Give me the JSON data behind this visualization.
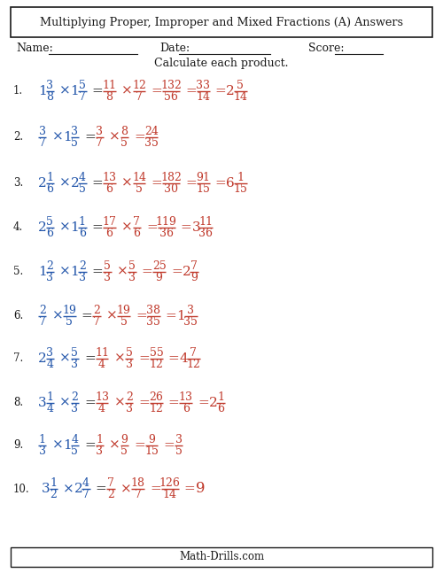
{
  "title": "Multiplying Proper, Improper and Mixed Fractions (A) Answers",
  "name_label": "Name:",
  "date_label": "Date:",
  "score_label": "Score:",
  "instruction": "Calculate each product.",
  "bg_color": "#ffffff",
  "black": "#1a1a1a",
  "red": "#c0392b",
  "blue": "#2255aa",
  "footer": "Math-Drills.com",
  "problems": [
    {
      "num": "1.",
      "parts": [
        {
          "type": "mixed",
          "whole": "1",
          "num": "3",
          "den": "8",
          "color": "blue"
        },
        {
          "type": "times",
          "color": "blue"
        },
        {
          "type": "mixed",
          "whole": "1",
          "num": "5",
          "den": "7",
          "color": "blue"
        },
        {
          "type": "equals",
          "color": "black"
        },
        {
          "type": "frac",
          "num": "11",
          "den": "8",
          "color": "red"
        },
        {
          "type": "times",
          "color": "red"
        },
        {
          "type": "frac",
          "num": "12",
          "den": "7",
          "color": "red"
        },
        {
          "type": "equals",
          "color": "red"
        },
        {
          "type": "frac",
          "num": "132",
          "den": "56",
          "color": "red"
        },
        {
          "type": "equals",
          "color": "red"
        },
        {
          "type": "frac",
          "num": "33",
          "den": "14",
          "color": "red"
        },
        {
          "type": "equals",
          "color": "red"
        },
        {
          "type": "mixed",
          "whole": "2",
          "num": "5",
          "den": "14",
          "color": "red"
        }
      ]
    },
    {
      "num": "2.",
      "parts": [
        {
          "type": "frac",
          "num": "3",
          "den": "7",
          "color": "blue"
        },
        {
          "type": "times",
          "color": "blue"
        },
        {
          "type": "mixed",
          "whole": "1",
          "num": "3",
          "den": "5",
          "color": "blue"
        },
        {
          "type": "equals",
          "color": "black"
        },
        {
          "type": "frac",
          "num": "3",
          "den": "7",
          "color": "red"
        },
        {
          "type": "times",
          "color": "red"
        },
        {
          "type": "frac",
          "num": "8",
          "den": "5",
          "color": "red"
        },
        {
          "type": "equals",
          "color": "red"
        },
        {
          "type": "frac",
          "num": "24",
          "den": "35",
          "color": "red"
        }
      ]
    },
    {
      "num": "3.",
      "parts": [
        {
          "type": "mixed",
          "whole": "2",
          "num": "1",
          "den": "6",
          "color": "blue"
        },
        {
          "type": "times",
          "color": "blue"
        },
        {
          "type": "mixed",
          "whole": "2",
          "num": "4",
          "den": "5",
          "color": "blue"
        },
        {
          "type": "equals",
          "color": "black"
        },
        {
          "type": "frac",
          "num": "13",
          "den": "6",
          "color": "red"
        },
        {
          "type": "times",
          "color": "red"
        },
        {
          "type": "frac",
          "num": "14",
          "den": "5",
          "color": "red"
        },
        {
          "type": "equals",
          "color": "red"
        },
        {
          "type": "frac",
          "num": "182",
          "den": "30",
          "color": "red"
        },
        {
          "type": "equals",
          "color": "red"
        },
        {
          "type": "frac",
          "num": "91",
          "den": "15",
          "color": "red"
        },
        {
          "type": "equals",
          "color": "red"
        },
        {
          "type": "mixed",
          "whole": "6",
          "num": "1",
          "den": "15",
          "color": "red"
        }
      ]
    },
    {
      "num": "4.",
      "parts": [
        {
          "type": "mixed",
          "whole": "2",
          "num": "5",
          "den": "6",
          "color": "blue"
        },
        {
          "type": "times",
          "color": "blue"
        },
        {
          "type": "mixed",
          "whole": "1",
          "num": "1",
          "den": "6",
          "color": "blue"
        },
        {
          "type": "equals",
          "color": "black"
        },
        {
          "type": "frac",
          "num": "17",
          "den": "6",
          "color": "red"
        },
        {
          "type": "times",
          "color": "red"
        },
        {
          "type": "frac",
          "num": "7",
          "den": "6",
          "color": "red"
        },
        {
          "type": "equals",
          "color": "red"
        },
        {
          "type": "frac",
          "num": "119",
          "den": "36",
          "color": "red"
        },
        {
          "type": "equals",
          "color": "red"
        },
        {
          "type": "mixed",
          "whole": "3",
          "num": "11",
          "den": "36",
          "color": "red"
        }
      ]
    },
    {
      "num": "5.",
      "parts": [
        {
          "type": "mixed",
          "whole": "1",
          "num": "2",
          "den": "3",
          "color": "blue"
        },
        {
          "type": "times",
          "color": "blue"
        },
        {
          "type": "mixed",
          "whole": "1",
          "num": "2",
          "den": "3",
          "color": "blue"
        },
        {
          "type": "equals",
          "color": "black"
        },
        {
          "type": "frac",
          "num": "5",
          "den": "3",
          "color": "red"
        },
        {
          "type": "times",
          "color": "red"
        },
        {
          "type": "frac",
          "num": "5",
          "den": "3",
          "color": "red"
        },
        {
          "type": "equals",
          "color": "red"
        },
        {
          "type": "frac",
          "num": "25",
          "den": "9",
          "color": "red"
        },
        {
          "type": "equals",
          "color": "red"
        },
        {
          "type": "mixed",
          "whole": "2",
          "num": "7",
          "den": "9",
          "color": "red"
        }
      ]
    },
    {
      "num": "6.",
      "parts": [
        {
          "type": "frac",
          "num": "2",
          "den": "7",
          "color": "blue"
        },
        {
          "type": "times",
          "color": "blue"
        },
        {
          "type": "frac",
          "num": "19",
          "den": "5",
          "color": "blue"
        },
        {
          "type": "equals",
          "color": "black"
        },
        {
          "type": "frac",
          "num": "2",
          "den": "7",
          "color": "red"
        },
        {
          "type": "times",
          "color": "red"
        },
        {
          "type": "frac",
          "num": "19",
          "den": "5",
          "color": "red"
        },
        {
          "type": "equals",
          "color": "red"
        },
        {
          "type": "frac",
          "num": "38",
          "den": "35",
          "color": "red"
        },
        {
          "type": "equals",
          "color": "red"
        },
        {
          "type": "mixed",
          "whole": "1",
          "num": "3",
          "den": "35",
          "color": "red"
        }
      ]
    },
    {
      "num": "7.",
      "parts": [
        {
          "type": "mixed",
          "whole": "2",
          "num": "3",
          "den": "4",
          "color": "blue"
        },
        {
          "type": "times",
          "color": "blue"
        },
        {
          "type": "frac",
          "num": "5",
          "den": "3",
          "color": "blue"
        },
        {
          "type": "equals",
          "color": "black"
        },
        {
          "type": "frac",
          "num": "11",
          "den": "4",
          "color": "red"
        },
        {
          "type": "times",
          "color": "red"
        },
        {
          "type": "frac",
          "num": "5",
          "den": "3",
          "color": "red"
        },
        {
          "type": "equals",
          "color": "red"
        },
        {
          "type": "frac",
          "num": "55",
          "den": "12",
          "color": "red"
        },
        {
          "type": "equals",
          "color": "red"
        },
        {
          "type": "mixed",
          "whole": "4",
          "num": "7",
          "den": "12",
          "color": "red"
        }
      ]
    },
    {
      "num": "8.",
      "parts": [
        {
          "type": "mixed",
          "whole": "3",
          "num": "1",
          "den": "4",
          "color": "blue"
        },
        {
          "type": "times",
          "color": "blue"
        },
        {
          "type": "frac",
          "num": "2",
          "den": "3",
          "color": "blue"
        },
        {
          "type": "equals",
          "color": "black"
        },
        {
          "type": "frac",
          "num": "13",
          "den": "4",
          "color": "red"
        },
        {
          "type": "times",
          "color": "red"
        },
        {
          "type": "frac",
          "num": "2",
          "den": "3",
          "color": "red"
        },
        {
          "type": "equals",
          "color": "red"
        },
        {
          "type": "frac",
          "num": "26",
          "den": "12",
          "color": "red"
        },
        {
          "type": "equals",
          "color": "red"
        },
        {
          "type": "frac",
          "num": "13",
          "den": "6",
          "color": "red"
        },
        {
          "type": "equals",
          "color": "red"
        },
        {
          "type": "mixed",
          "whole": "2",
          "num": "1",
          "den": "6",
          "color": "red"
        }
      ]
    },
    {
      "num": "9.",
      "parts": [
        {
          "type": "frac",
          "num": "1",
          "den": "3",
          "color": "blue"
        },
        {
          "type": "times",
          "color": "blue"
        },
        {
          "type": "mixed",
          "whole": "1",
          "num": "4",
          "den": "5",
          "color": "blue"
        },
        {
          "type": "equals",
          "color": "black"
        },
        {
          "type": "frac",
          "num": "1",
          "den": "3",
          "color": "red"
        },
        {
          "type": "times",
          "color": "red"
        },
        {
          "type": "frac",
          "num": "9",
          "den": "5",
          "color": "red"
        },
        {
          "type": "equals",
          "color": "red"
        },
        {
          "type": "frac",
          "num": "9",
          "den": "15",
          "color": "red"
        },
        {
          "type": "equals",
          "color": "red"
        },
        {
          "type": "frac",
          "num": "3",
          "den": "5",
          "color": "red"
        }
      ]
    },
    {
      "num": "10.",
      "parts": [
        {
          "type": "mixed",
          "whole": "3",
          "num": "1",
          "den": "2",
          "color": "blue"
        },
        {
          "type": "times",
          "color": "blue"
        },
        {
          "type": "mixed",
          "whole": "2",
          "num": "4",
          "den": "7",
          "color": "blue"
        },
        {
          "type": "equals",
          "color": "black"
        },
        {
          "type": "frac",
          "num": "7",
          "den": "2",
          "color": "red"
        },
        {
          "type": "times",
          "color": "red"
        },
        {
          "type": "frac",
          "num": "18",
          "den": "7",
          "color": "red"
        },
        {
          "type": "equals",
          "color": "red"
        },
        {
          "type": "frac",
          "num": "126",
          "den": "14",
          "color": "red"
        },
        {
          "type": "equals",
          "color": "red"
        },
        {
          "type": "whole",
          "val": "9",
          "color": "red"
        }
      ]
    }
  ]
}
